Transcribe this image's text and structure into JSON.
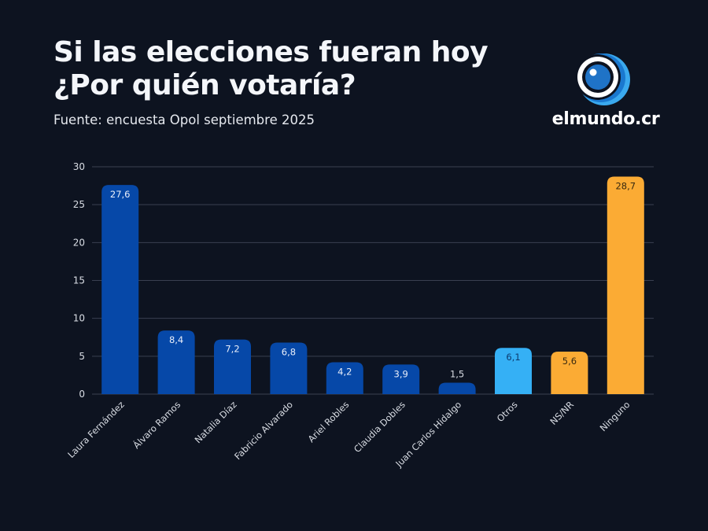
{
  "header": {
    "title_line1": "Si las elecciones fueran hoy",
    "title_line2": "¿Por quién votaría?",
    "subtitle": "Fuente: encuesta Opol septiembre 2025"
  },
  "logo": {
    "icon": "eye-icon",
    "text": "elmundo.cr"
  },
  "chart_data": {
    "type": "bar",
    "title": "Si las elecciones fueran hoy ¿Por quién votaría?",
    "subtitle": "Fuente: encuesta Opol septiembre 2025",
    "xlabel": "",
    "ylabel": "",
    "ylim": [
      0,
      30
    ],
    "yticks": [
      0,
      5,
      10,
      15,
      20,
      25,
      30
    ],
    "grid": true,
    "legend": "none",
    "categories": [
      "Laura Fernández",
      "Álvaro Ramos",
      "Natalia Díaz",
      "Fabricio Alvarado",
      "Ariel Robles",
      "Claudia Dobles",
      "Juan Carlos Hidalgo",
      "Otros",
      "NS/NR",
      "Ninguno"
    ],
    "values": [
      27.6,
      8.4,
      7.2,
      6.8,
      4.2,
      3.9,
      1.5,
      6.1,
      5.6,
      28.7
    ],
    "value_labels": [
      "27,6",
      "8,4",
      "7,2",
      "6,8",
      "4,2",
      "3,9",
      "1,5",
      "6,1",
      "5,6",
      "28,7"
    ],
    "colors": [
      "#0648a8",
      "#0648a8",
      "#0648a8",
      "#0648a8",
      "#0648a8",
      "#0648a8",
      "#0648a8",
      "#35b0f5",
      "#fbab34",
      "#fbab34"
    ],
    "label_colors": [
      "#e8eefa",
      "#e8eefa",
      "#e8eefa",
      "#e8eefa",
      "#e8eefa",
      "#e8eefa",
      "#e8eefa",
      "#0d3a6e",
      "#3a2a10",
      "#3a2a10"
    ]
  }
}
